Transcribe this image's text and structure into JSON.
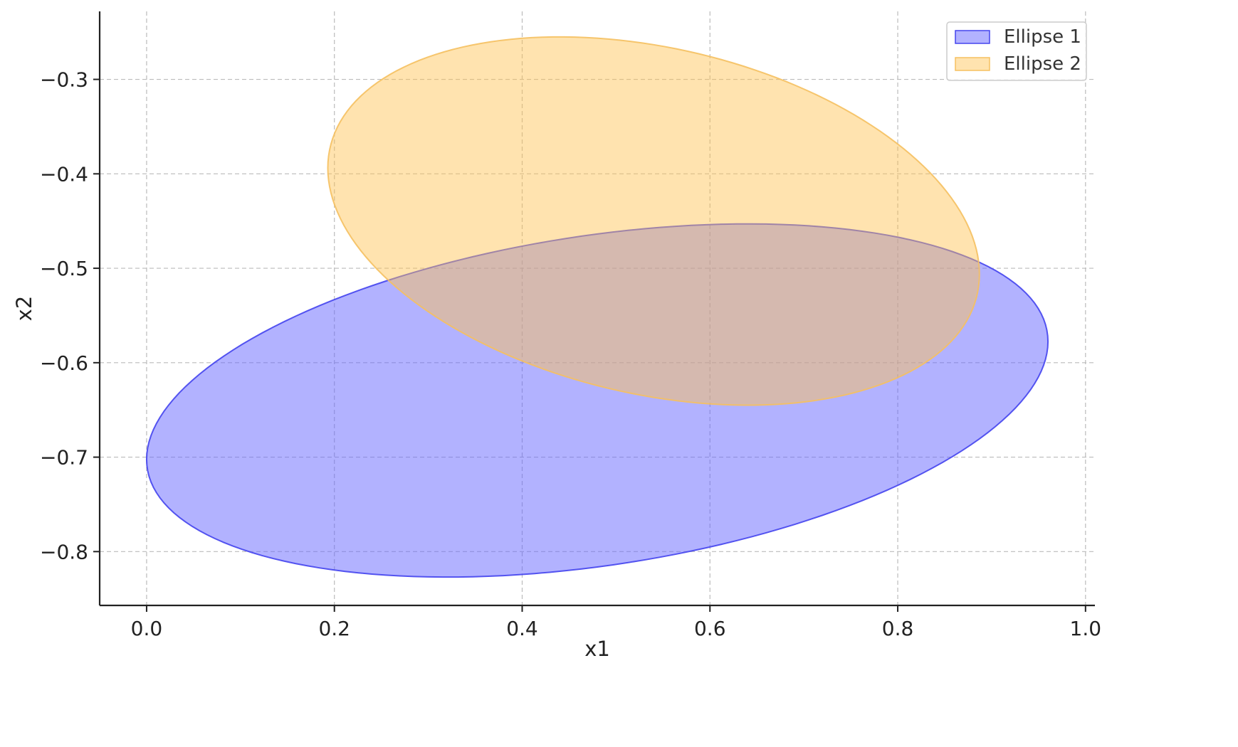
{
  "chart_data": {
    "type": "area",
    "title": "",
    "xlabel": "x1",
    "ylabel": "x2",
    "xlim": [
      -0.05,
      1.01
    ],
    "ylim": [
      -0.857,
      -0.228
    ],
    "x_ticks": [
      0.0,
      0.2,
      0.4,
      0.6,
      0.8,
      1.0
    ],
    "x_tick_labels": [
      "0.0",
      "0.2",
      "0.4",
      "0.6",
      "0.8",
      "1.0"
    ],
    "y_ticks": [
      -0.3,
      -0.4,
      -0.5,
      -0.6,
      -0.7,
      -0.8
    ],
    "y_tick_labels": [
      "−0.3",
      "−0.4",
      "−0.5",
      "−0.6",
      "−0.7",
      "−0.8"
    ],
    "grid": true,
    "legend_position": "top-right",
    "series": [
      {
        "name": "Ellipse 1",
        "shape": "ellipse",
        "center": [
          0.48,
          -0.64
        ],
        "x_extent": [
          0.0,
          0.96
        ],
        "y_extent": [
          -0.827,
          -0.453
        ],
        "x_at_y_extremes": [
          0.32,
          0.64
        ],
        "fill": "#6666ff",
        "fill_opacity": 0.5,
        "edge": "#4444ee"
      },
      {
        "name": "Ellipse 2",
        "shape": "ellipse",
        "center": [
          0.54,
          -0.45
        ],
        "x_extent": [
          0.193,
          0.887
        ],
        "y_extent": [
          -0.645,
          -0.255
        ],
        "x_at_y_extremes": [
          0.64,
          0.44
        ],
        "fill": "#ffc04d",
        "fill_opacity": 0.45,
        "edge": "#f5c060"
      }
    ]
  }
}
